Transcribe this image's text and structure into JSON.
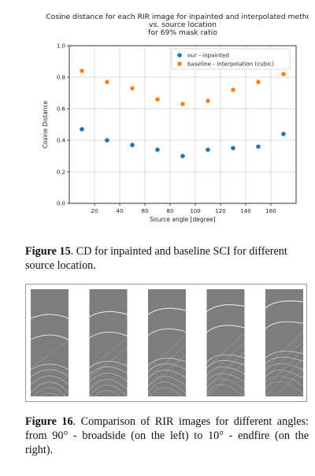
{
  "figure15": {
    "chart_data": {
      "type": "scatter",
      "title_lines": [
        "Cosine distance for each RIR image  for inpainted and interpolated methods",
        "vs. source location",
        "for 69% mask ratio"
      ],
      "xlabel": "Source angle [degree]",
      "ylabel": "Cosine Distance",
      "xlim": [
        0,
        180
      ],
      "ylim": [
        0.0,
        1.0
      ],
      "xticks": [
        20,
        40,
        60,
        80,
        100,
        120,
        140,
        160
      ],
      "yticks": [
        0.0,
        0.2,
        0.4,
        0.6,
        0.8,
        1.0
      ],
      "ytick_labels": [
        "0.0",
        "0.2",
        "0.4",
        "0.6",
        "0.8",
        "1.0"
      ],
      "grid": true,
      "legend_position": "top-right",
      "series": [
        {
          "name": "our - inpainted",
          "color": "#1f77b4",
          "x": [
            10,
            30,
            50,
            70,
            90,
            110,
            130,
            150,
            170
          ],
          "y": [
            0.47,
            0.4,
            0.37,
            0.34,
            0.3,
            0.34,
            0.35,
            0.36,
            0.44
          ]
        },
        {
          "name": "baseline - interpolation (cubic)",
          "color": "#ff7f0e",
          "x": [
            10,
            30,
            50,
            70,
            90,
            110,
            130,
            150,
            170
          ],
          "y": [
            0.84,
            0.77,
            0.73,
            0.66,
            0.63,
            0.65,
            0.72,
            0.77,
            0.82
          ]
        }
      ]
    },
    "caption_label": "Figure 15",
    "caption_text": ". CD for inpainted and baseline SCI for different source location."
  },
  "figure16": {
    "caption_label": "Figure 16",
    "caption_text": ". Comparison of RIR images for different angles: from 90° - broadside (on the left) to 10° - endfire (on the right).",
    "panel_count": 5
  }
}
